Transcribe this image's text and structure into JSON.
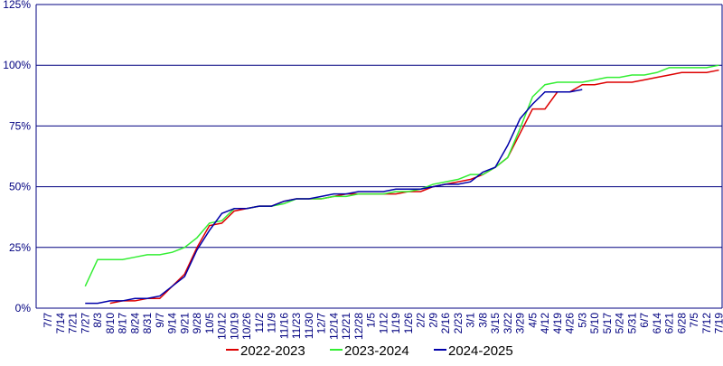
{
  "chart_data": {
    "type": "line",
    "categories": [
      "7/7",
      "7/14",
      "7/21",
      "7/27",
      "8/3",
      "8/10",
      "8/17",
      "8/24",
      "8/31",
      "9/7",
      "9/14",
      "9/21",
      "9/28",
      "10/5",
      "10/12",
      "10/19",
      "10/26",
      "11/2",
      "11/9",
      "11/16",
      "11/23",
      "11/30",
      "12/7",
      "12/14",
      "12/21",
      "12/28",
      "1/5",
      "1/12",
      "1/19",
      "1/26",
      "2/2",
      "2/9",
      "2/16",
      "2/23",
      "3/1",
      "3/8",
      "3/15",
      "3/22",
      "3/29",
      "4/5",
      "4/12",
      "4/19",
      "4/26",
      "5/3",
      "5/10",
      "5/17",
      "5/24",
      "5/31",
      "6/7",
      "6/14",
      "6/21",
      "6/28",
      "7/5",
      "7/12",
      "7/19"
    ],
    "series": [
      {
        "name": "2022-2023",
        "color": "#dd0000",
        "values": [
          null,
          null,
          null,
          null,
          null,
          2,
          3,
          3,
          4,
          4,
          9,
          14,
          25,
          34,
          35,
          40,
          41,
          42,
          42,
          44,
          45,
          45,
          45,
          46,
          47,
          47,
          47,
          47,
          47,
          48,
          48,
          50,
          51,
          52,
          53,
          55,
          58,
          62,
          72,
          82,
          82,
          89,
          89,
          92,
          92,
          93,
          93,
          93,
          94,
          95,
          96,
          97,
          97,
          97,
          98
        ]
      },
      {
        "name": "2023-2024",
        "color": "#33ee33",
        "values": [
          null,
          null,
          null,
          9,
          20,
          20,
          20,
          21,
          22,
          22,
          23,
          25,
          29,
          35,
          36,
          41,
          41,
          42,
          42,
          43,
          45,
          45,
          45,
          46,
          46,
          47,
          47,
          47,
          48,
          48,
          49,
          51,
          52,
          53,
          55,
          55,
          58,
          62,
          74,
          87,
          92,
          93,
          93,
          93,
          94,
          95,
          95,
          96,
          96,
          97,
          99,
          99,
          99,
          99,
          100
        ]
      },
      {
        "name": "2024-2025",
        "color": "#0000aa",
        "values": [
          null,
          null,
          null,
          2,
          2,
          3,
          3,
          4,
          4,
          5,
          9,
          13,
          24,
          32,
          39,
          41,
          41,
          42,
          42,
          44,
          45,
          45,
          46,
          47,
          47,
          48,
          48,
          48,
          49,
          49,
          49,
          50,
          51,
          51,
          52,
          56,
          58,
          67,
          78,
          84,
          89,
          89,
          89,
          90,
          null,
          null,
          null,
          null,
          null,
          null,
          null,
          null,
          null,
          null,
          null
        ]
      }
    ],
    "ylim": [
      0,
      125
    ],
    "yticks": [
      {
        "value": 0,
        "label": "0%"
      },
      {
        "value": 25,
        "label": "25%"
      },
      {
        "value": 50,
        "label": "50%"
      },
      {
        "value": 75,
        "label": "75%"
      },
      {
        "value": 100,
        "label": "100%"
      },
      {
        "value": 125,
        "label": "125%"
      }
    ],
    "grid": true,
    "legend": "bottom"
  }
}
